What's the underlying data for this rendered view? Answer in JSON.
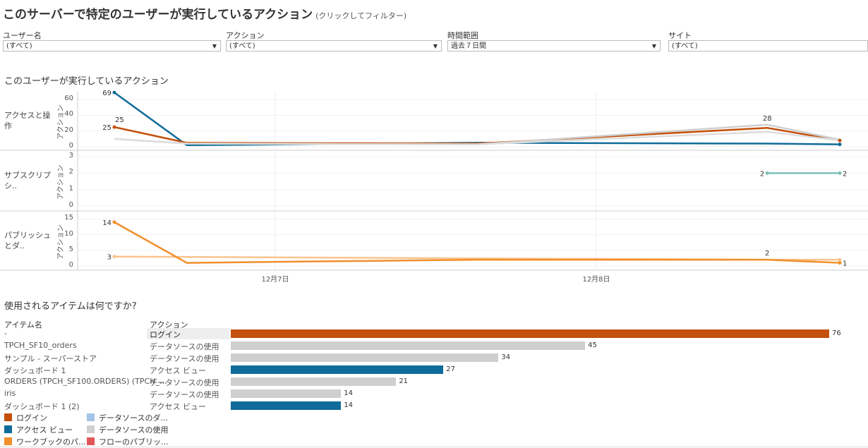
{
  "title": "このサーバーで特定のユーザーが実行しているアクション",
  "title_note": "(クリックしてフィルター)",
  "filters": [
    {
      "label": "ユーザー名",
      "value": "(すべて)"
    },
    {
      "label": "アクション",
      "value": "(すべて)"
    },
    {
      "label": "時間範囲",
      "value": "過去７日間"
    },
    {
      "label": "サイト",
      "value": "(すべて)"
    }
  ],
  "line_section_title": "このユーザーが実行しているアクション",
  "y_axis_label": "アクション",
  "x_ticks": [
    "12月7日",
    "12月8日"
  ],
  "colors": {
    "login": "#c4500b",
    "access": "#0f6b99",
    "datasource": "#cfcfcf",
    "workbook": "#f28e2b",
    "workbook_light": "#f9c48e",
    "subscription": "#7fbfb6",
    "ds_download": "#a3c4e6",
    "flow": "#e15759"
  },
  "chart_data": [
    {
      "type": "line",
      "panel": "アクセスと操作",
      "ylim": [
        0,
        70
      ],
      "yticks": [
        "0",
        "20",
        "40",
        "60"
      ],
      "series": [
        {
          "color": "#0f6b99",
          "x": [
            0,
            1,
            5,
            9,
            10
          ],
          "values": [
            69,
            2,
            5,
            4,
            3
          ]
        },
        {
          "color": "#c4500b",
          "x": [
            0,
            1,
            5,
            9,
            10
          ],
          "values": [
            25,
            5,
            4,
            24,
            8
          ]
        },
        {
          "color": "#cfcfcf",
          "x": [
            0,
            1,
            5,
            9,
            10
          ],
          "values": [
            10,
            4,
            3,
            28,
            9
          ]
        },
        {
          "color": "#dddddd",
          "x": [
            0,
            1,
            5,
            9,
            10
          ],
          "values": [
            10,
            4,
            3,
            19,
            8
          ]
        }
      ],
      "labels": [
        {
          "text": "69",
          "x": 0,
          "y": 69,
          "pos": "left"
        },
        {
          "text": "25",
          "x": 0,
          "y": 25,
          "pos": "left"
        },
        {
          "text": "25",
          "x": 0,
          "y": 25,
          "pos": "topright"
        },
        {
          "text": "28",
          "x": 9,
          "y": 28,
          "pos": "top"
        }
      ]
    },
    {
      "type": "line",
      "panel": "サブスクリプシ..",
      "ylim": [
        0,
        3
      ],
      "yticks": [
        "0",
        "1",
        "2",
        "3"
      ],
      "series": [
        {
          "color": "#7fbfb6",
          "x": [
            9,
            10
          ],
          "values": [
            2,
            2
          ]
        }
      ],
      "labels": [
        {
          "text": "2",
          "x": 9,
          "y": 2,
          "pos": "left"
        },
        {
          "text": "2",
          "x": 10,
          "y": 2,
          "pos": "right"
        }
      ]
    },
    {
      "type": "line",
      "panel": "パブリッシュとダ..",
      "ylim": [
        0,
        16
      ],
      "yticks": [
        "0",
        "5",
        "10",
        "15"
      ],
      "series": [
        {
          "color": "#f9c48e",
          "x": [
            0,
            9,
            10
          ],
          "values": [
            3,
            2,
            2
          ]
        },
        {
          "color": "#f28e2b",
          "x": [
            0,
            1,
            5,
            9,
            10
          ],
          "values": [
            14,
            1,
            2,
            2,
            1
          ]
        }
      ],
      "labels": [
        {
          "text": "14",
          "x": 0,
          "y": 14,
          "pos": "left"
        },
        {
          "text": "3",
          "x": 0,
          "y": 3,
          "pos": "left"
        },
        {
          "text": "2",
          "x": 9,
          "y": 2,
          "pos": "top"
        },
        {
          "text": "1",
          "x": 10,
          "y": 1,
          "pos": "right"
        }
      ]
    },
    {
      "type": "bar",
      "title": "使用されるアイテムは何ですか?",
      "col_item": "アイテム名",
      "col_action": "アクション",
      "xlim": [
        0,
        80
      ],
      "rows": [
        {
          "item": "-",
          "action": "ログイン",
          "value": 76,
          "color": "#c4500b"
        },
        {
          "item": "TPCH_SF10_orders",
          "action": "データソースの使用",
          "value": 45,
          "color": "#cfcfcf"
        },
        {
          "item": "サンプル - スーパーストア",
          "action": "データソースの使用",
          "value": 34,
          "color": "#cfcfcf"
        },
        {
          "item": "ダッシュボード 1",
          "action": "アクセス ビュー",
          "value": 27,
          "color": "#0f6b99"
        },
        {
          "item": "ORDERS (TPCH_SF100.ORDERS) (TPCH_...",
          "action": "データソースの使用",
          "value": 21,
          "color": "#cfcfcf"
        },
        {
          "item": "iris",
          "action": "データソースの使用",
          "value": 14,
          "color": "#cfcfcf"
        },
        {
          "item": "ダッシュボード 1 (2)",
          "action": "アクセス ビュー",
          "value": 14,
          "color": "#0f6b99"
        }
      ]
    }
  ],
  "legend": [
    {
      "label": "ログイン",
      "color": "#c4500b"
    },
    {
      "label": "アクセス ビュー",
      "color": "#0f6b99"
    },
    {
      "label": "ワークブックのパ...",
      "color": "#f28e2b"
    },
    {
      "label": "データソースのダ...",
      "color": "#a3c4e6"
    },
    {
      "label": "データソースの使用",
      "color": "#cfcfcf"
    },
    {
      "label": "フローのパブリッ...",
      "color": "#e15759"
    }
  ]
}
